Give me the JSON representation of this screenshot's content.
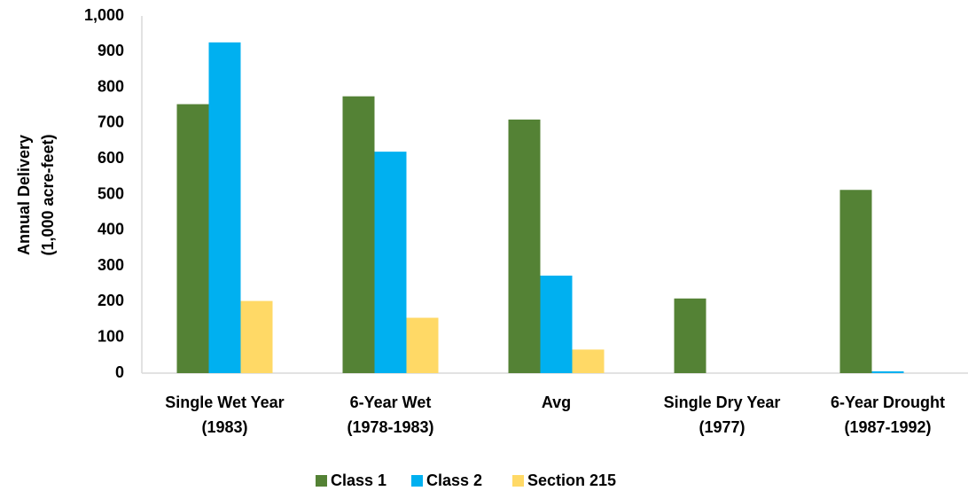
{
  "chart_data": {
    "type": "bar",
    "y_label": [
      "Annual Delivery",
      "(1,000 acre-feet)"
    ],
    "categories": [
      [
        "Single Wet Year",
        "(1983)"
      ],
      [
        "6-Year Wet",
        "(1978-1983)"
      ],
      [
        "Avg"
      ],
      [
        "Single Dry Year",
        "(1977)"
      ],
      [
        "6-Year Drought",
        "(1987-1992)"
      ]
    ],
    "series": [
      {
        "name": "Class 1",
        "color": "#548235",
        "values": [
          753,
          775,
          710,
          209,
          513
        ]
      },
      {
        "name": "Class 2",
        "color": "#00b0f0",
        "values": [
          926,
          620,
          273,
          0,
          5
        ]
      },
      {
        "name": "Section 215",
        "color": "#ffd966",
        "values": [
          202,
          155,
          66,
          0,
          0
        ]
      }
    ],
    "ylim": [
      0,
      1000
    ],
    "yticks": [
      0,
      100,
      200,
      300,
      400,
      500,
      600,
      700,
      800,
      900,
      {
        "value": 1000,
        "label": "1,000"
      }
    ],
    "grid": false,
    "legend": "bottom"
  }
}
